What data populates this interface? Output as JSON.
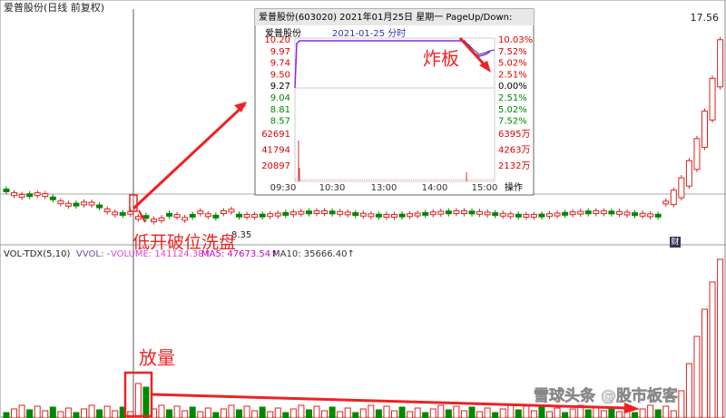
{
  "header": {
    "title": "爱普股份(日线 前复权)",
    "high_label": "17.56",
    "low_label": "8.35",
    "icon": "财"
  },
  "annotations": {
    "gap_down": "低开破位洗盘",
    "volume_up": "放量",
    "limit_break": "炸板"
  },
  "volume_panel": {
    "name": "VOL-TDX(5,10)",
    "vvol": "VVOL: -",
    "volume": "VOLUME: 141124.38↑",
    "ma5": "MA5: 47673.54↑",
    "ma10": "MA10: 35666.40↑"
  },
  "popup": {
    "title": "爱普股份(603020)  2021年01月25日 星期一  PageUp/Down:",
    "stock": "爱普股份",
    "date": "2021-01-25 分时",
    "price_labels": [
      "10.20",
      "9.97",
      "9.74",
      "9.50",
      "9.27",
      "9.04",
      "8.81",
      "8.57"
    ],
    "pct_labels": [
      "10.03%",
      "7.52%",
      "5.02%",
      "2.51%",
      "0.00%",
      "2.51%",
      "5.02%",
      "7.52%"
    ],
    "vol_labels": [
      "62691",
      "41794",
      "20897"
    ],
    "amount_labels": [
      "6395万",
      "4263万",
      "2132万"
    ],
    "time_labels": [
      "09:30",
      "10:30",
      "13:00",
      "14:00",
      "15:00"
    ],
    "button": "操作"
  },
  "watermark": "雪球头条 @股市板客"
}
